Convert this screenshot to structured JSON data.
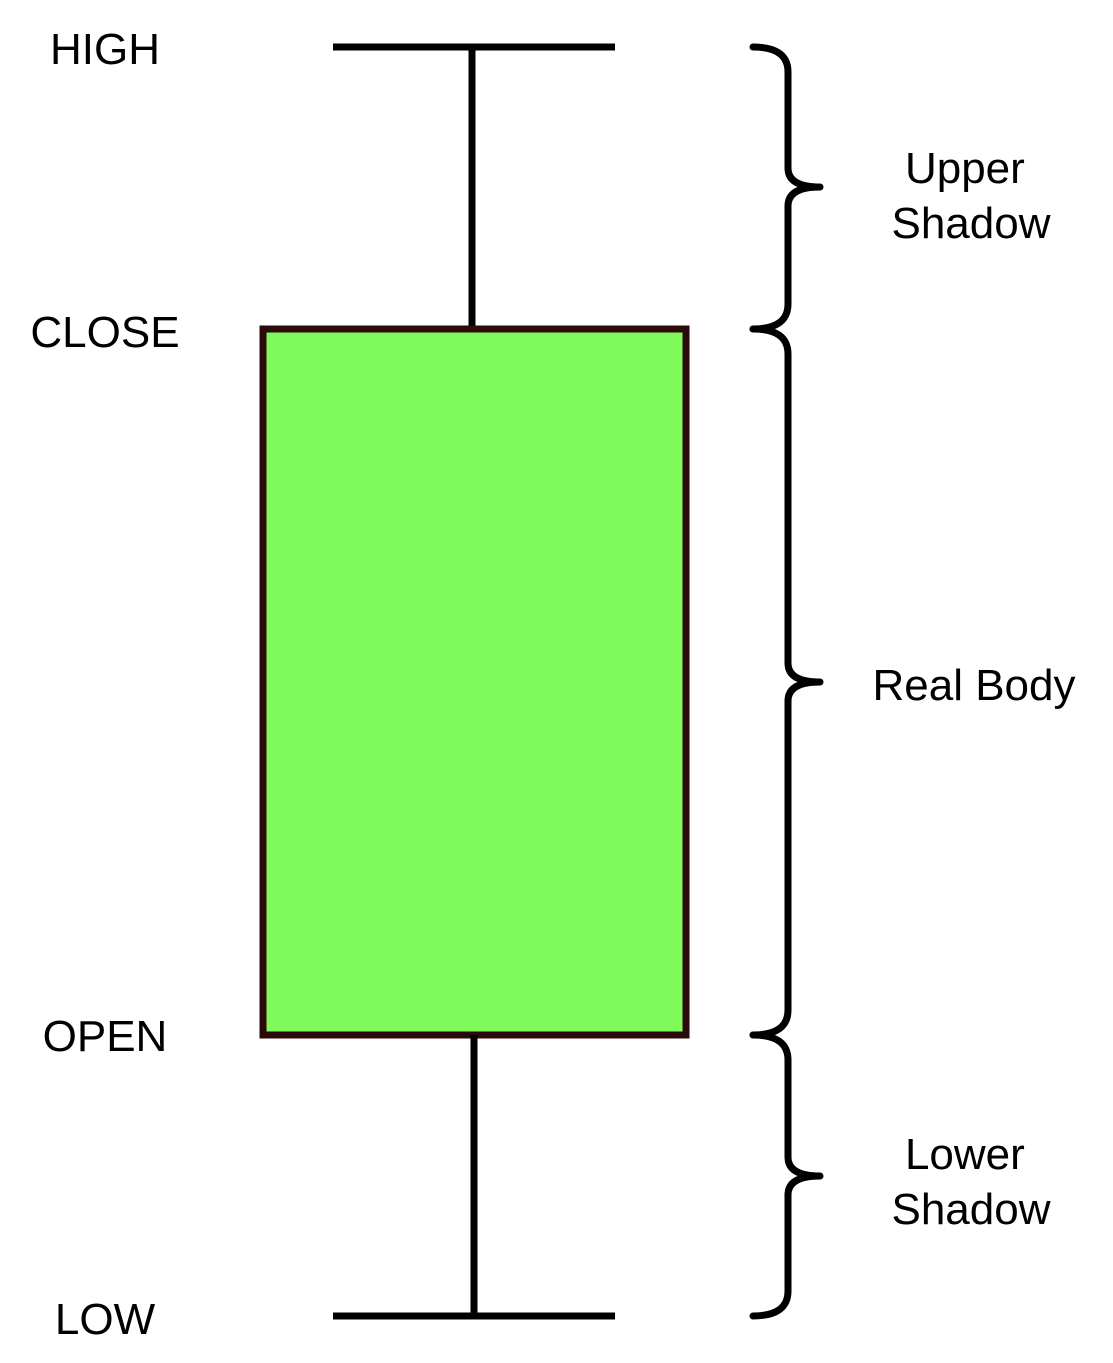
{
  "labels": {
    "high": "HIGH",
    "close": "CLOSE",
    "open": "OPEN",
    "low": "LOW"
  },
  "annotations": {
    "upper_shadow": [
      "Upper",
      "Shadow"
    ],
    "real_body": "Real Body",
    "lower_shadow": [
      "Lower",
      "Shadow"
    ]
  },
  "colors": {
    "body_fill": "#80FA5A",
    "body_stroke": "#2B0A0A",
    "line": "#000000"
  }
}
